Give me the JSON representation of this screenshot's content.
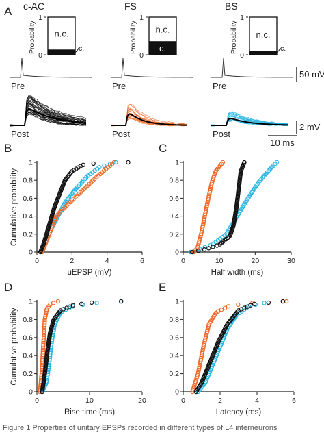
{
  "colors": {
    "cac": "#111111",
    "fs": "#ee6a2a",
    "bs": "#29b6e3"
  },
  "panel_A": {
    "label": "A",
    "groups": [
      {
        "title": "c-AC",
        "box_nc": "n.c.",
        "box_c": "c.",
        "c_fraction": 0.14,
        "color": "#111111"
      },
      {
        "title": "FS",
        "box_nc": "n.c.",
        "box_c": "c.",
        "c_fraction": 0.36,
        "color": "#ee6a2a"
      },
      {
        "title": "BS",
        "box_nc": "n.c.",
        "box_c": "c.",
        "c_fraction": 0.1,
        "color": "#29b6e3"
      }
    ],
    "prob_axis": {
      "label": "Probability",
      "ticks": [
        "0",
        "1"
      ]
    },
    "trace_labels": {
      "pre": "Pre",
      "post": "Post"
    },
    "scalebars": {
      "mv50": "50 mV",
      "mv2": "2 mV",
      "ms10": "10 ms"
    }
  },
  "chart_data": [
    {
      "panel": "B",
      "type": "scatter",
      "xlabel": "uEPSP (mV)",
      "ylabel": "Cumulative probability",
      "xlim": [
        0,
        6
      ],
      "ylim": [
        0,
        1
      ],
      "xticks": [
        "0",
        "2",
        "4",
        "6"
      ],
      "yticks": [
        "0",
        "0.2",
        "0.4",
        "0.6",
        "0.8",
        "1"
      ],
      "series": [
        {
          "group": "BS",
          "color": "#29b6e3",
          "cdf": [
            [
              0.3,
              0
            ],
            [
              0.5,
              0.1
            ],
            [
              0.8,
              0.25
            ],
            [
              1.2,
              0.4
            ],
            [
              1.6,
              0.55
            ],
            [
              2.2,
              0.7
            ],
            [
              2.9,
              0.85
            ],
            [
              3.6,
              0.95
            ],
            [
              4.5,
              1.0
            ]
          ]
        },
        {
          "group": "FS",
          "color": "#ee6a2a",
          "cdf": [
            [
              0.3,
              0
            ],
            [
              0.5,
              0.1
            ],
            [
              0.8,
              0.25
            ],
            [
              1.1,
              0.4
            ],
            [
              1.6,
              0.5
            ],
            [
              2.4,
              0.65
            ],
            [
              3.2,
              0.8
            ],
            [
              3.9,
              0.92
            ],
            [
              4.4,
              1.0
            ]
          ]
        },
        {
          "group": "c-AC",
          "color": "#111111",
          "cdf": [
            [
              0.2,
              0
            ],
            [
              0.4,
              0.1
            ],
            [
              0.7,
              0.3
            ],
            [
              1.0,
              0.5
            ],
            [
              1.3,
              0.65
            ],
            [
              1.6,
              0.8
            ],
            [
              2.0,
              0.9
            ],
            [
              2.6,
              0.97
            ],
            [
              3.4,
              0.99
            ],
            [
              5.2,
              1.0
            ]
          ]
        }
      ]
    },
    {
      "panel": "C",
      "type": "scatter",
      "xlabel": "Half width (ms)",
      "ylabel": "",
      "xlim": [
        0,
        30
      ],
      "ylim": [
        0,
        1
      ],
      "xticks": [
        "0",
        "10",
        "20",
        "30"
      ],
      "yticks": [
        "0",
        "0.2",
        "0.4",
        "0.6",
        "0.8",
        "1"
      ],
      "series": [
        {
          "group": "BS",
          "color": "#29b6e3",
          "cdf": [
            [
              2.0,
              0
            ],
            [
              4.0,
              0.03
            ],
            [
              8.0,
              0.08
            ],
            [
              12.0,
              0.2
            ],
            [
              15.0,
              0.4
            ],
            [
              18.0,
              0.6
            ],
            [
              21.0,
              0.78
            ],
            [
              24.0,
              0.92
            ],
            [
              26.0,
              1.0
            ]
          ]
        },
        {
          "group": "FS",
          "color": "#ee6a2a",
          "cdf": [
            [
              3.0,
              0
            ],
            [
              4.0,
              0.05
            ],
            [
              5.0,
              0.2
            ],
            [
              6.0,
              0.4
            ],
            [
              7.0,
              0.6
            ],
            [
              8.0,
              0.78
            ],
            [
              9.0,
              0.9
            ],
            [
              11.0,
              1.0
            ]
          ]
        },
        {
          "group": "c-AC",
          "color": "#111111",
          "cdf": [
            [
              2.5,
              0
            ],
            [
              6.0,
              0.03
            ],
            [
              10.0,
              0.08
            ],
            [
              13.0,
              0.18
            ],
            [
              14.0,
              0.3
            ],
            [
              14.8,
              0.5
            ],
            [
              15.4,
              0.7
            ],
            [
              16.0,
              0.9
            ],
            [
              17.0,
              1.0
            ]
          ]
        }
      ]
    },
    {
      "panel": "D",
      "type": "scatter",
      "xlabel": "Rise time (ms)",
      "ylabel": "Cumulative probability",
      "xlim": [
        0,
        20
      ],
      "ylim": [
        0,
        1
      ],
      "xticks": [
        "0",
        "10",
        "20"
      ],
      "yticks": [
        "0",
        "0.2",
        "0.4",
        "0.6",
        "0.8",
        "1"
      ],
      "series": [
        {
          "group": "BS",
          "color": "#29b6e3",
          "cdf": [
            [
              1.0,
              0
            ],
            [
              1.8,
              0.1
            ],
            [
              2.3,
              0.3
            ],
            [
              2.8,
              0.55
            ],
            [
              3.4,
              0.75
            ],
            [
              4.5,
              0.88
            ],
            [
              7.0,
              0.95
            ],
            [
              11.0,
              0.98
            ],
            [
              16.0,
              1.0
            ]
          ]
        },
        {
          "group": "FS",
          "color": "#ee6a2a",
          "cdf": [
            [
              0.6,
              0
            ],
            [
              0.9,
              0.2
            ],
            [
              1.2,
              0.5
            ],
            [
              1.5,
              0.8
            ],
            [
              1.9,
              0.92
            ],
            [
              2.6,
              0.97
            ],
            [
              4.0,
              1.0
            ]
          ]
        },
        {
          "group": "c-AC",
          "color": "#111111",
          "cdf": [
            [
              1.0,
              0
            ],
            [
              1.5,
              0.2
            ],
            [
              2.0,
              0.45
            ],
            [
              2.5,
              0.65
            ],
            [
              3.2,
              0.8
            ],
            [
              4.5,
              0.9
            ],
            [
              7.0,
              0.96
            ],
            [
              11.0,
              0.99
            ],
            [
              16.0,
              1.0
            ]
          ]
        }
      ]
    },
    {
      "panel": "E",
      "type": "scatter",
      "xlabel": "Latency (ms)",
      "ylabel": "",
      "xlim": [
        0,
        6
      ],
      "ylim": [
        0,
        1
      ],
      "xticks": [
        "0",
        "2",
        "4",
        "6"
      ],
      "yticks": [
        "0",
        "0.2",
        "0.4",
        "0.6",
        "0.8",
        "1"
      ],
      "series": [
        {
          "group": "BS",
          "color": "#29b6e3",
          "cdf": [
            [
              0.8,
              0
            ],
            [
              1.2,
              0.1
            ],
            [
              1.6,
              0.3
            ],
            [
              2.0,
              0.5
            ],
            [
              2.4,
              0.7
            ],
            [
              2.9,
              0.85
            ],
            [
              3.6,
              0.95
            ],
            [
              4.6,
              0.99
            ],
            [
              5.4,
              1.0
            ]
          ]
        },
        {
          "group": "FS",
          "color": "#ee6a2a",
          "cdf": [
            [
              0.5,
              0
            ],
            [
              0.8,
              0.2
            ],
            [
              1.1,
              0.5
            ],
            [
              1.4,
              0.75
            ],
            [
              1.8,
              0.88
            ],
            [
              2.5,
              0.95
            ],
            [
              3.6,
              0.98
            ],
            [
              5.6,
              1.0
            ]
          ]
        },
        {
          "group": "c-AC",
          "color": "#111111",
          "cdf": [
            [
              0.7,
              0
            ],
            [
              1.0,
              0.1
            ],
            [
              1.4,
              0.3
            ],
            [
              1.9,
              0.55
            ],
            [
              2.4,
              0.75
            ],
            [
              3.0,
              0.9
            ],
            [
              3.8,
              0.97
            ],
            [
              5.4,
              1.0
            ]
          ]
        }
      ]
    }
  ],
  "caption": "Figure 1  Properties of unitary EPSPs recorded in different types of L4 interneurons"
}
